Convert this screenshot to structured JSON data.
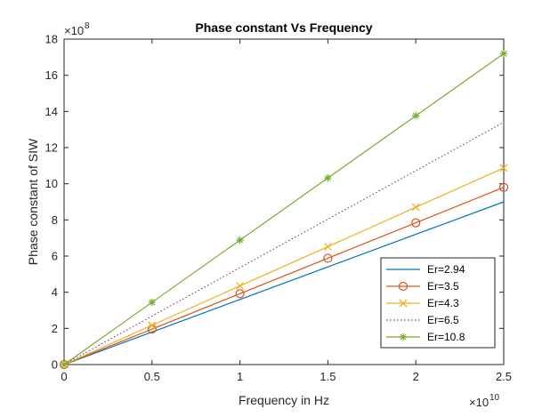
{
  "chart_data": {
    "type": "line",
    "title": "Phase constant Vs Frequency",
    "xlabel": "Frequency in Hz",
    "ylabel": "Phase constant of SIW",
    "x_exponent": {
      "base": "×10",
      "power": "10"
    },
    "y_exponent": {
      "base": "×10",
      "power": "8"
    },
    "xlim": [
      0,
      2.5
    ],
    "ylim": [
      0,
      18
    ],
    "x_ticks": [
      "0",
      "0.5",
      "1",
      "1.5",
      "2",
      "2.5"
    ],
    "y_ticks": [
      "0",
      "2",
      "4",
      "6",
      "8",
      "10",
      "12",
      "14",
      "16",
      "18"
    ],
    "x": [
      0,
      0.5,
      1,
      1.5,
      2,
      2.5
    ],
    "grid": false,
    "legend_position": "bottom-right",
    "series": [
      {
        "name": "Er=2.94",
        "values": [
          0,
          1.8,
          3.6,
          5.4,
          7.2,
          9.0
        ],
        "color": "#0072BD",
        "marker": "none",
        "line": "solid"
      },
      {
        "name": "Er=3.5",
        "values": [
          0,
          1.96,
          3.92,
          5.88,
          7.84,
          9.8
        ],
        "color": "#D95319",
        "marker": "circle",
        "line": "solid"
      },
      {
        "name": "Er=4.3",
        "values": [
          0,
          2.17,
          4.35,
          6.52,
          8.7,
          10.87
        ],
        "color": "#EDB120",
        "marker": "x",
        "line": "solid"
      },
      {
        "name": "Er=6.5",
        "values": [
          0,
          2.68,
          5.36,
          8.04,
          10.72,
          13.4
        ],
        "color": "#7E2F8E",
        "marker": "none",
        "line": "dotted"
      },
      {
        "name": "Er=10.8",
        "values": [
          0,
          3.44,
          6.88,
          10.32,
          13.76,
          17.2
        ],
        "color": "#77AC30",
        "marker": "asterisk",
        "line": "solid"
      }
    ]
  }
}
